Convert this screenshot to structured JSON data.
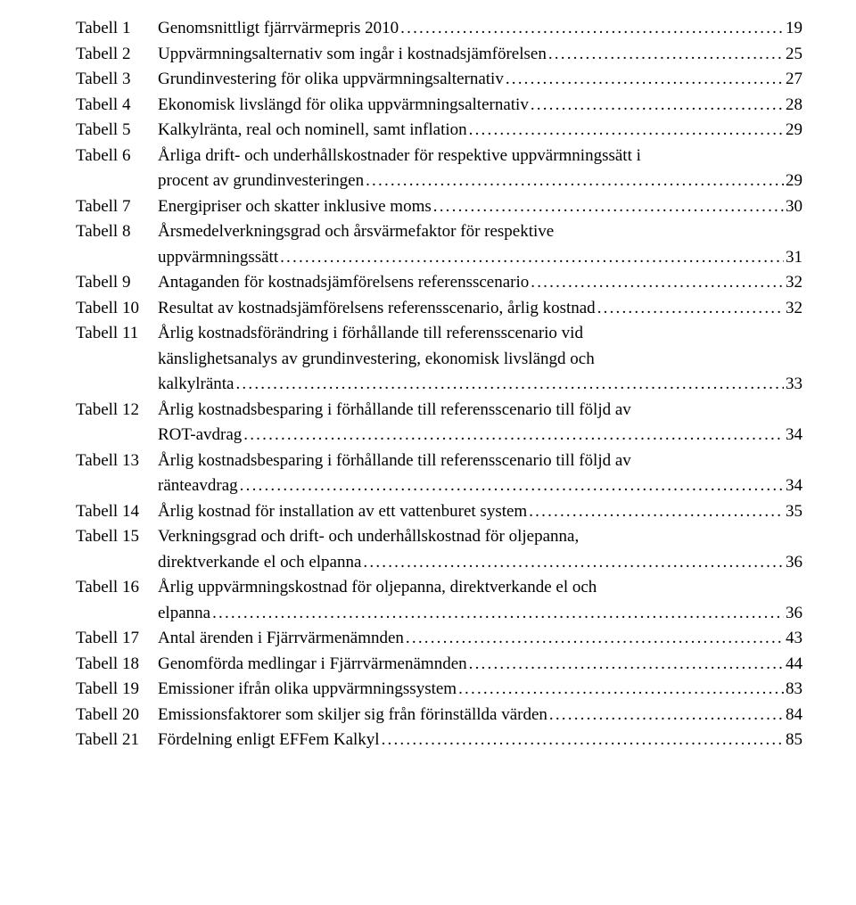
{
  "entries": [
    {
      "label": "Tabell 1",
      "title": [
        "Genomsnittligt fjärrvärmepris 2010"
      ],
      "page": "19"
    },
    {
      "label": "Tabell 2",
      "title": [
        "Uppvärmningsalternativ som ingår i kostnadsjämförelsen"
      ],
      "page": "25"
    },
    {
      "label": "Tabell 3",
      "title": [
        "Grundinvestering för olika uppvärmningsalternativ"
      ],
      "page": "27"
    },
    {
      "label": "Tabell 4",
      "title": [
        "Ekonomisk livslängd för olika uppvärmningsalternativ"
      ],
      "page": "28"
    },
    {
      "label": "Tabell 5",
      "title": [
        "Kalkylränta, real och nominell, samt inflation"
      ],
      "page": "29"
    },
    {
      "label": "Tabell 6",
      "title": [
        "Årliga drift- och underhållskostnader för respektive uppvärmningssätt i",
        "procent  av grundinvesteringen"
      ],
      "page": "29"
    },
    {
      "label": "Tabell 7",
      "title": [
        "Energipriser och skatter inklusive moms"
      ],
      "page": "30"
    },
    {
      "label": "Tabell 8",
      "title": [
        "Årsmedelverkningsgrad och årsvärmefaktor för respektive",
        "uppvärmningssätt"
      ],
      "page": "31"
    },
    {
      "label": "Tabell 9",
      "title": [
        "Antaganden för kostnadsjämförelsens referensscenario"
      ],
      "page": "32"
    },
    {
      "label": "Tabell 10",
      "title": [
        "Resultat av kostnadsjämförelsens referensscenario, årlig kostnad"
      ],
      "page": "32"
    },
    {
      "label": "Tabell 11",
      "title": [
        "Årlig kostnadsförändring i förhållande till referensscenario vid",
        "känslighetsanalys av grundinvestering, ekonomisk livslängd och",
        "kalkylränta"
      ],
      "page": "33"
    },
    {
      "label": "Tabell 12",
      "title": [
        "Årlig kostnadsbesparing i förhållande till referensscenario till följd av",
        "ROT-avdrag"
      ],
      "page": "34"
    },
    {
      "label": "Tabell 13",
      "title": [
        "Årlig kostnadsbesparing i förhållande till referensscenario till följd av",
        "ränteavdrag"
      ],
      "page": "34"
    },
    {
      "label": "Tabell 14",
      "title": [
        "Årlig kostnad för installation av ett vattenburet system"
      ],
      "page": "35"
    },
    {
      "label": "Tabell 15",
      "title": [
        "Verkningsgrad och drift- och underhållskostnad för oljepanna,",
        "direktverkande el och elpanna"
      ],
      "page": "36"
    },
    {
      "label": "Tabell 16",
      "title": [
        "Årlig uppvärmningskostnad för oljepanna, direktverkande el och",
        "elpanna"
      ],
      "page": "36"
    },
    {
      "label": "Tabell 17",
      "title": [
        "Antal ärenden i Fjärrvärmenämnden"
      ],
      "page": "43"
    },
    {
      "label": "Tabell 18",
      "title": [
        "Genomförda medlingar i Fjärrvärmenämnden"
      ],
      "page": "44"
    },
    {
      "label": "Tabell 19",
      "title": [
        "Emissioner ifrån olika uppvärmningssystem"
      ],
      "page": "83"
    },
    {
      "label": "Tabell 20",
      "title": [
        "Emissionsfaktorer som skiljer sig från förinställda värden"
      ],
      "page": "84"
    },
    {
      "label": "Tabell 21",
      "title": [
        "Fördelning enligt EFFem Kalkyl"
      ],
      "page": "85"
    }
  ],
  "style": {
    "font_family": "Palatino Linotype",
    "font_size_pt": 14,
    "text_color": "#000000",
    "background_color": "#ffffff",
    "label_column_chars": 9,
    "leader_char": "."
  }
}
